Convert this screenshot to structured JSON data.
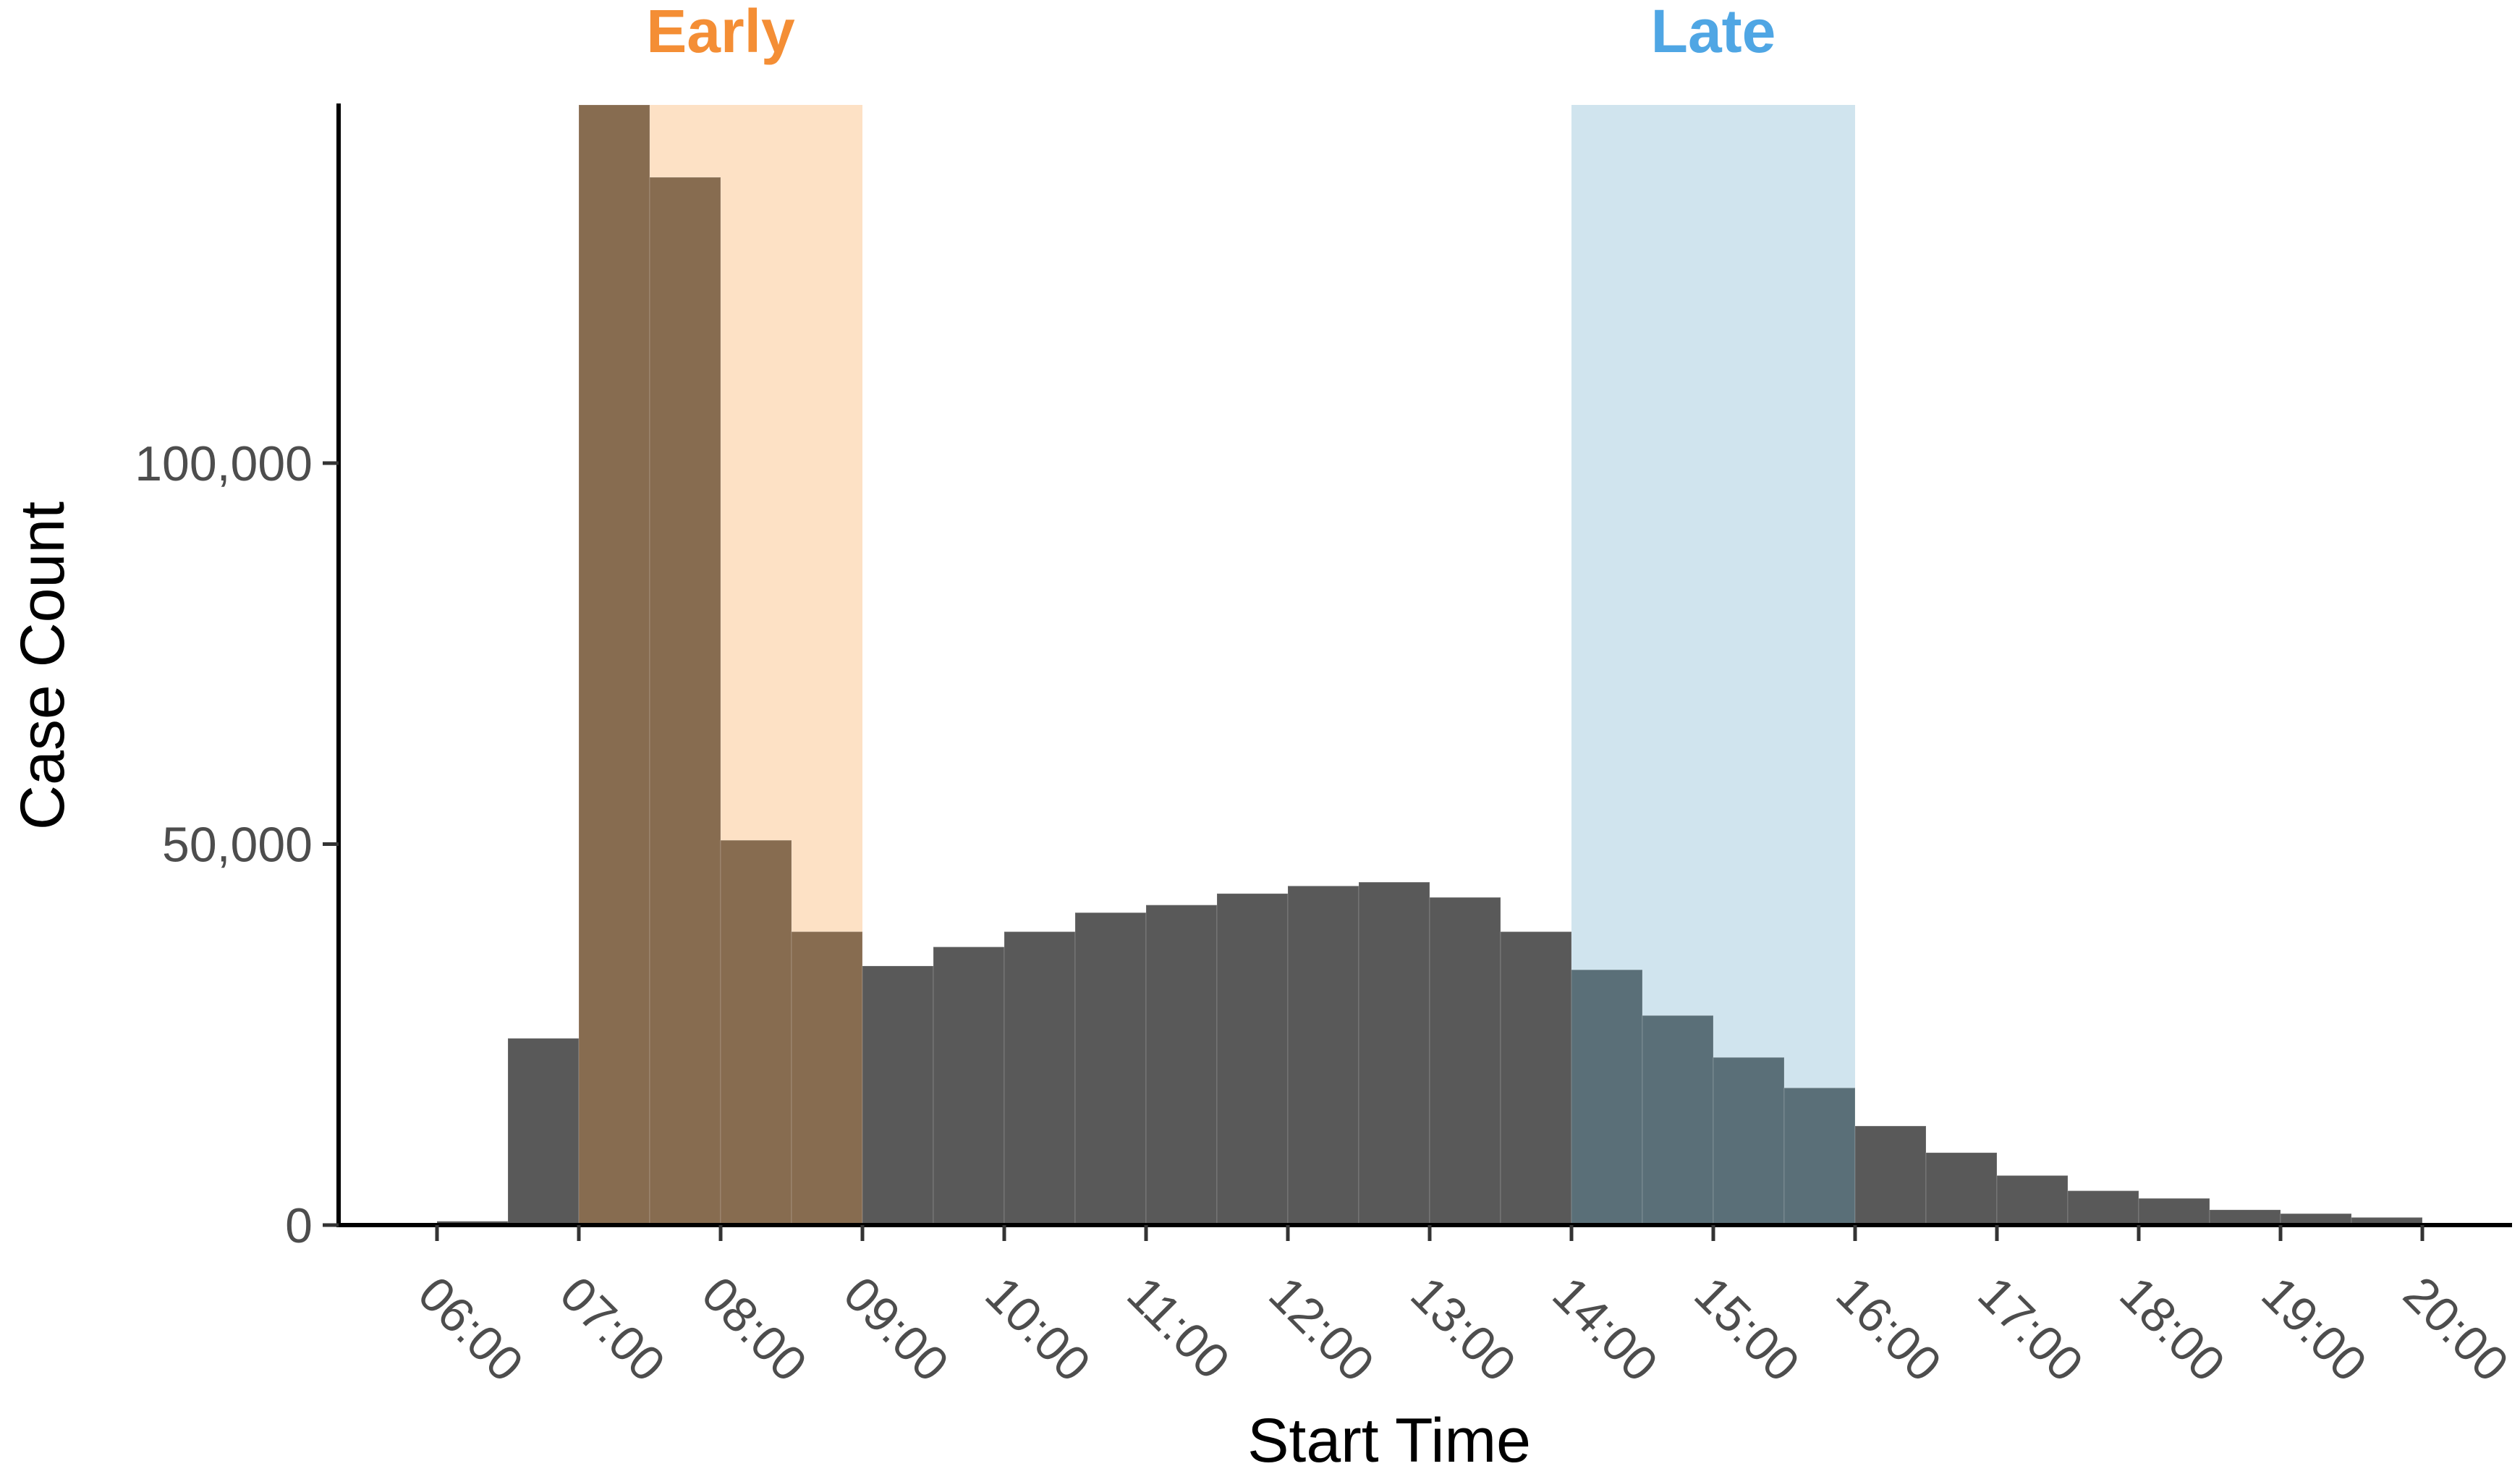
{
  "chart_data": {
    "type": "bar",
    "xlabel": "Start Time",
    "ylabel": "Case Count",
    "x_tick_labels": [
      "06:00",
      "07:00",
      "08:00",
      "09:00",
      "10:00",
      "11:00",
      "12:00",
      "13:00",
      "14:00",
      "15:00",
      "16:00",
      "17:00",
      "18:00",
      "19:00",
      "20:00"
    ],
    "x_range_hours": [
      5.5,
      20.5
    ],
    "ylim": [
      0,
      147000
    ],
    "y_ticks": [
      0,
      50000,
      100000
    ],
    "y_tick_labels": [
      "0",
      "50,000",
      "100,000"
    ],
    "bins": {
      "starts": [
        6.0,
        6.5,
        7.0,
        7.5,
        8.0,
        8.5,
        9.0,
        9.5,
        10.0,
        10.5,
        11.0,
        11.5,
        12.0,
        12.5,
        13.0,
        13.5,
        14.0,
        14.5,
        15.0,
        15.5,
        16.0,
        16.5,
        17.0,
        17.5,
        18.0,
        18.5,
        19.0,
        19.5
      ],
      "width": 0.5,
      "counts": [
        500,
        24500,
        147000,
        137500,
        50500,
        38500,
        34000,
        36500,
        38500,
        41000,
        42000,
        43500,
        44500,
        45000,
        43000,
        38500,
        33500,
        27500,
        22000,
        18000,
        13000,
        9500,
        6500,
        4500,
        3500,
        2000,
        1500,
        1000
      ]
    },
    "highlight_bands": [
      {
        "label": "Early",
        "from": 7.0,
        "to": 9.0,
        "band_color": "#fde1c5",
        "label_color": "#f48e35",
        "bar_color": "#876c50"
      },
      {
        "label": "Late",
        "from": 14.0,
        "to": 16.0,
        "band_color": "#d0e4ee",
        "label_color": "#4fa6e4",
        "bar_color": "#5a6f78"
      }
    ],
    "bar_color": "#595959",
    "grid": false,
    "legend": "none"
  }
}
